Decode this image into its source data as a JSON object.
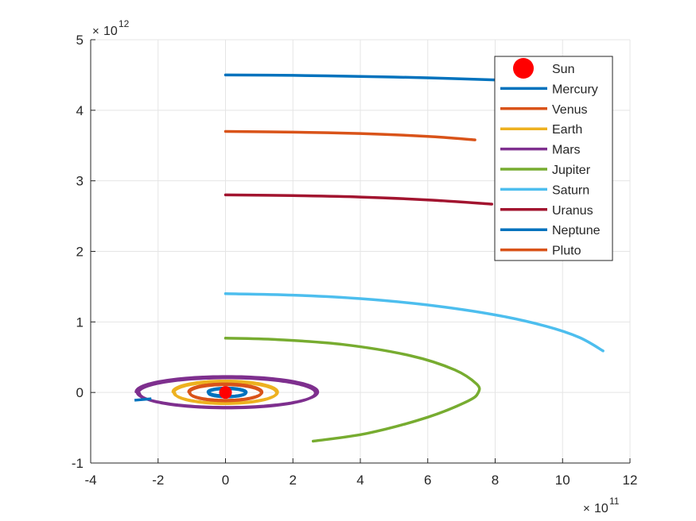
{
  "chart_data": {
    "type": "line",
    "title": "",
    "xlabel": "",
    "ylabel": "",
    "xlim": [
      -400000000000.0,
      1200000000000.0
    ],
    "ylim": [
      -1000000000000.0,
      5000000000000.0
    ],
    "x_exponent_label": "10",
    "x_exponent_power": "11",
    "y_exponent_label": "10",
    "y_exponent_power": "12",
    "x_ticks": [
      -4,
      -2,
      0,
      2,
      4,
      6,
      8,
      10,
      12
    ],
    "x_tick_labels": [
      "-4",
      "-2",
      "0",
      "2",
      "4",
      "6",
      "8",
      "10",
      "12"
    ],
    "y_ticks": [
      -1,
      0,
      1,
      2,
      3,
      4,
      5
    ],
    "y_tick_labels": [
      "-1",
      "0",
      "1",
      "2",
      "3",
      "4",
      "5"
    ],
    "x_scale": 100000000000.0,
    "y_scale": 1000000000000.0,
    "grid": true,
    "legend_placement": "top-right",
    "sun": {
      "name": "Sun",
      "x": 0,
      "y": 0,
      "color": "#ff0000"
    },
    "series": [
      {
        "name": "Mercury",
        "color": "#0072bd",
        "kind": "ellipse",
        "a": 55000000000.0,
        "b": 55000000000.0,
        "cx": 5000000000.0,
        "cy": 0,
        "turns": 2.2
      },
      {
        "name": "Venus",
        "color": "#d95319",
        "kind": "ellipse",
        "a": 105000000000.0,
        "b": 110000000000.0,
        "cx": 0,
        "cy": 0,
        "turns": 2
      },
      {
        "name": "Earth",
        "color": "#edb120",
        "kind": "ellipse",
        "a": 150000000000.0,
        "b": 150000000000.0,
        "cx": 0,
        "cy": 0,
        "turns": 2
      },
      {
        "name": "Mars",
        "color": "#7e2f8e",
        "kind": "ellipse",
        "a": 260000000000.0,
        "b": 210000000000.0,
        "cx": 5000000000.0,
        "cy": 0,
        "turns": 3
      },
      {
        "name": "Jupiter",
        "color": "#77ac30",
        "kind": "arc",
        "x": [
          0,
          150000000000.0,
          350000000000.0,
          550000000000.0,
          680000000000.0,
          745000000000.0,
          750000000000.0,
          720000000000.0,
          600000000000.0,
          420000000000.0,
          260000000000.0
        ],
        "y": [
          770000000000.0,
          750000000000.0,
          680000000000.0,
          520000000000.0,
          320000000000.0,
          120000000000.0,
          0,
          -120000000000.0,
          -350000000000.0,
          -580000000000.0,
          -690000000000.0
        ]
      },
      {
        "name": "Saturn",
        "color": "#4dbeee",
        "kind": "arc",
        "x": [
          0,
          200000000000.0,
          400000000000.0,
          600000000000.0,
          800000000000.0,
          950000000000.0,
          1050000000000.0,
          1120000000000.0
        ],
        "y": [
          1400000000000.0,
          1380000000000.0,
          1330000000000.0,
          1240000000000.0,
          1100000000000.0,
          940000000000.0,
          780000000000.0,
          590000000000.0
        ]
      },
      {
        "name": "Uranus",
        "color": "#a2142f",
        "kind": "arc",
        "x": [
          0,
          200000000000.0,
          400000000000.0,
          600000000000.0,
          790000000000.0
        ],
        "y": [
          2800000000000.0,
          2790000000000.0,
          2770000000000.0,
          2730000000000.0,
          2670000000000.0
        ]
      },
      {
        "name": "Neptune",
        "color": "#0072bd",
        "kind": "arc",
        "x": [
          0,
          200000000000.0,
          400000000000.0,
          600000000000.0,
          800000000000.0,
          920000000000.0
        ],
        "y": [
          4500000000000.0,
          4495000000000.0,
          4480000000000.0,
          4460000000000.0,
          4430000000000.0,
          4410000000000.0
        ]
      },
      {
        "name": "Pluto",
        "color": "#d95319",
        "kind": "arc",
        "x": [
          0,
          200000000000.0,
          400000000000.0,
          600000000000.0,
          740000000000.0
        ],
        "y": [
          3700000000000.0,
          3690000000000.0,
          3670000000000.0,
          3630000000000.0,
          3580000000000.0
        ]
      }
    ]
  }
}
